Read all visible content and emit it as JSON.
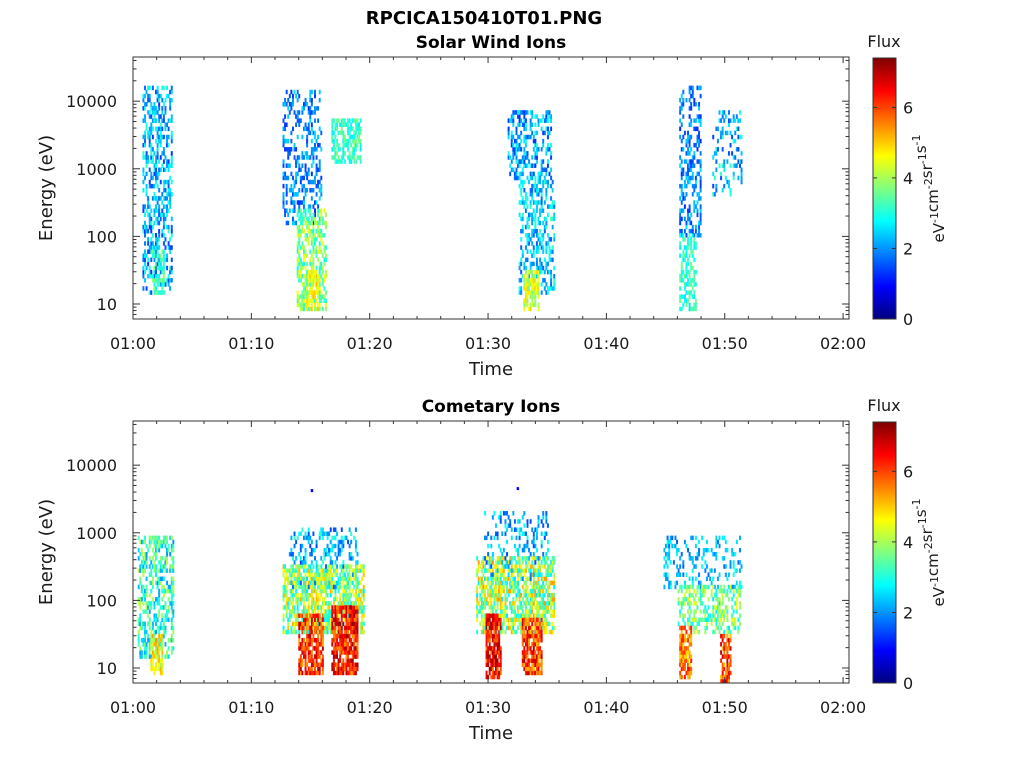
{
  "figure": {
    "title": "RPCICA150410T01.PNG"
  },
  "colorbar": {
    "label": "Flux",
    "unit_base": "eV",
    "unit_rest": [
      {
        "base": "cm",
        "exp": "-2"
      },
      {
        "base": "sr",
        "exp": "-1"
      },
      {
        "base": "s",
        "exp": "-1"
      }
    ],
    "unit_exp": "-1",
    "ticks": [
      "0",
      "2",
      "4",
      "6"
    ],
    "range": [
      0,
      7.4
    ],
    "colormap": "jet"
  },
  "chart_data": [
    {
      "type": "heatmap",
      "title": "Solar Wind Ions",
      "xlabel": "Time",
      "ylabel": "Energy (eV)",
      "x_ticks": [
        "01:00",
        "01:10",
        "01:20",
        "01:30",
        "01:40",
        "01:50",
        "02:00"
      ],
      "y_ticks": [
        "10",
        "100",
        "1000",
        "10000"
      ],
      "xlim_minutes": [
        0,
        60.5
      ],
      "y_scale": "log",
      "ylim": [
        6,
        45000
      ],
      "clusters": [
        {
          "t": [
            0.8,
            3.2
          ],
          "e": [
            13,
            15000
          ],
          "flux_min": 1.3,
          "flux_max": 3.2,
          "density": 0.45
        },
        {
          "t": [
            1.6,
            2.6
          ],
          "e": [
            13,
            60
          ],
          "flux_min": 2.8,
          "flux_max": 3.8,
          "density": 0.6
        },
        {
          "t": [
            12.6,
            15.8
          ],
          "e": [
            150,
            14000
          ],
          "flux_min": 1.2,
          "flux_max": 2.6,
          "density": 0.35
        },
        {
          "t": [
            13.8,
            16.2
          ],
          "e": [
            8,
            250
          ],
          "flux_min": 2.8,
          "flux_max": 4.6,
          "density": 0.6
        },
        {
          "t": [
            14.6,
            15.6
          ],
          "e": [
            8,
            30
          ],
          "flux_min": 4.2,
          "flux_max": 5.2,
          "density": 0.7
        },
        {
          "t": [
            16.8,
            19.2
          ],
          "e": [
            1200,
            5000
          ],
          "flux_min": 2.6,
          "flux_max": 3.8,
          "density": 0.6
        },
        {
          "t": [
            31.6,
            35.2
          ],
          "e": [
            700,
            7000
          ],
          "flux_min": 1.2,
          "flux_max": 3.0,
          "density": 0.4
        },
        {
          "t": [
            32.6,
            35.6
          ],
          "e": [
            13,
            700
          ],
          "flux_min": 1.6,
          "flux_max": 3.2,
          "density": 0.4
        },
        {
          "t": [
            33.0,
            34.2
          ],
          "e": [
            8,
            30
          ],
          "flux_min": 3.6,
          "flux_max": 5.0,
          "density": 0.7
        },
        {
          "t": [
            46.2,
            48.0
          ],
          "e": [
            100,
            17000
          ],
          "flux_min": 1.2,
          "flux_max": 2.6,
          "density": 0.4
        },
        {
          "t": [
            46.2,
            47.6
          ],
          "e": [
            8,
            100
          ],
          "flux_min": 2.6,
          "flux_max": 3.6,
          "density": 0.5
        },
        {
          "t": [
            49.0,
            51.4
          ],
          "e": [
            400,
            7000
          ],
          "flux_min": 1.4,
          "flux_max": 3.2,
          "density": 0.2
        }
      ]
    },
    {
      "type": "heatmap",
      "title": "Cometary Ions",
      "xlabel": "Time",
      "ylabel": "Energy (eV)",
      "x_ticks": [
        "01:00",
        "01:10",
        "01:20",
        "01:30",
        "01:40",
        "01:50",
        "02:00"
      ],
      "y_ticks": [
        "10",
        "100",
        "1000",
        "10000"
      ],
      "xlim_minutes": [
        0,
        60.5
      ],
      "y_scale": "log",
      "ylim": [
        6,
        45000
      ],
      "clusters": [
        {
          "t": [
            0.4,
            3.4
          ],
          "e": [
            13,
            800
          ],
          "flux_min": 2.0,
          "flux_max": 4.2,
          "density": 0.5
        },
        {
          "t": [
            1.4,
            2.4
          ],
          "e": [
            8,
            30
          ],
          "flux_min": 3.8,
          "flux_max": 5.4,
          "density": 0.7
        },
        {
          "t": [
            12.6,
            19.4
          ],
          "e": [
            30,
            300
          ],
          "flux_min": 2.6,
          "flux_max": 5.2,
          "density": 0.65
        },
        {
          "t": [
            13.2,
            19.0
          ],
          "e": [
            150,
            1100
          ],
          "flux_min": 1.4,
          "flux_max": 3.2,
          "density": 0.3
        },
        {
          "t": [
            14.0,
            16.0
          ],
          "e": [
            8,
            60
          ],
          "flux_min": 5.2,
          "flux_max": 7.0,
          "density": 0.75
        },
        {
          "t": [
            16.8,
            19.0
          ],
          "e": [
            8,
            80
          ],
          "flux_min": 5.4,
          "flux_max": 7.2,
          "density": 0.8
        },
        {
          "t": [
            29.0,
            35.6
          ],
          "e": [
            30,
            400
          ],
          "flux_min": 2.6,
          "flux_max": 5.4,
          "density": 0.65
        },
        {
          "t": [
            29.6,
            35.0
          ],
          "e": [
            200,
            2000
          ],
          "flux_min": 1.4,
          "flux_max": 3.0,
          "density": 0.25
        },
        {
          "t": [
            29.8,
            31.0
          ],
          "e": [
            7,
            60
          ],
          "flux_min": 5.6,
          "flux_max": 7.3,
          "density": 0.85
        },
        {
          "t": [
            32.8,
            34.4
          ],
          "e": [
            8,
            50
          ],
          "flux_min": 5.0,
          "flux_max": 7.0,
          "density": 0.8
        },
        {
          "t": [
            44.8,
            51.4
          ],
          "e": [
            150,
            800
          ],
          "flux_min": 1.6,
          "flux_max": 3.0,
          "density": 0.3
        },
        {
          "t": [
            46.0,
            51.2
          ],
          "e": [
            30,
            150
          ],
          "flux_min": 2.6,
          "flux_max": 4.6,
          "density": 0.45
        },
        {
          "t": [
            46.2,
            47.2
          ],
          "e": [
            7,
            40
          ],
          "flux_min": 4.8,
          "flux_max": 6.4,
          "density": 0.7
        },
        {
          "t": [
            49.6,
            50.4
          ],
          "e": [
            6,
            30
          ],
          "flux_min": 5.0,
          "flux_max": 7.0,
          "density": 0.7
        }
      ],
      "points": [
        {
          "t": 15.1,
          "e": 4200,
          "flux": 1.0
        },
        {
          "t": 32.5,
          "e": 4500,
          "flux": 1.0
        }
      ]
    }
  ]
}
